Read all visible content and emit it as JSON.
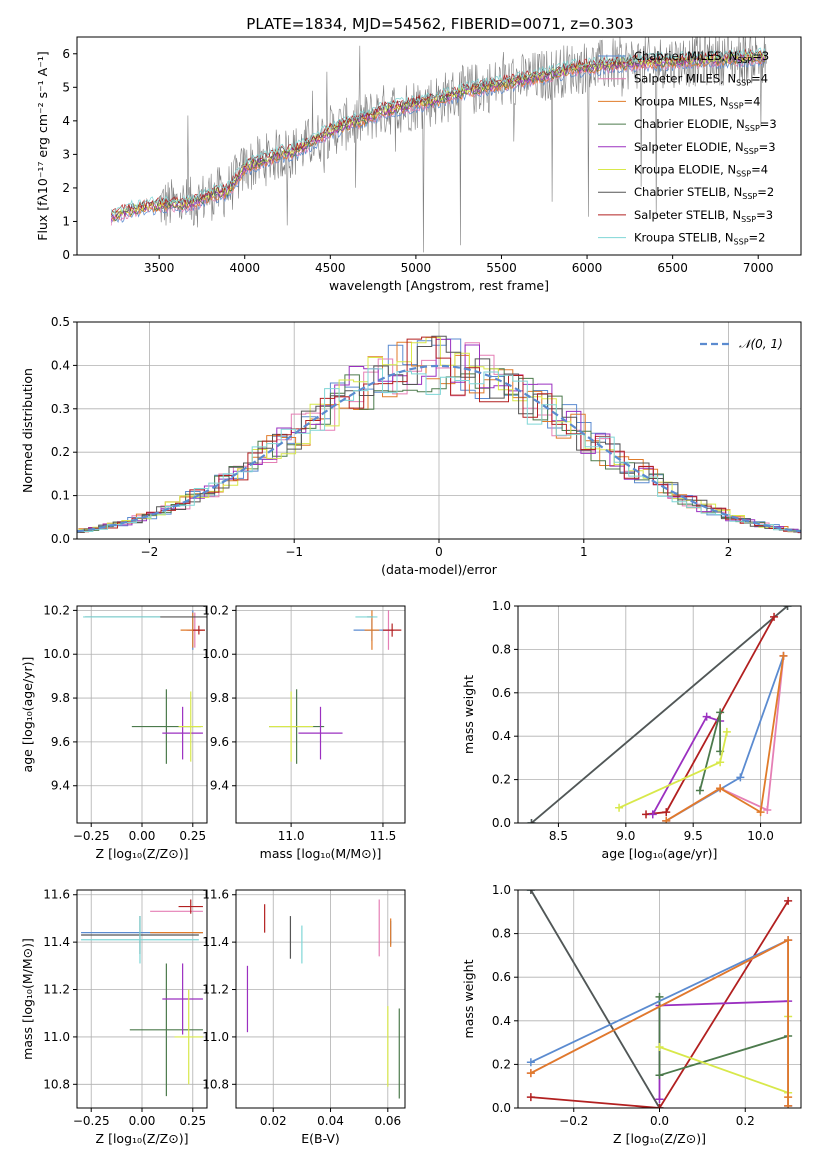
{
  "figure_title": "PLATE=1834, MJD=54562, FIBERID=0071, z=0.303",
  "chart_data": [
    {
      "id": "spectrum",
      "type": "line",
      "title": "PLATE=1834, MJD=54562, FIBERID=0071, z=0.303",
      "xlabel": "wavelength [Angstrom, rest frame]",
      "ylabel": "Flux [fλ10⁻¹⁷ erg cm⁻² s⁻¹ A⁻¹]",
      "xlim": [
        3020,
        7250
      ],
      "ylim": [
        0,
        6.5
      ],
      "xticks": [
        3500,
        4000,
        4500,
        5000,
        5500,
        6000,
        6500,
        7000
      ],
      "yticks": [
        0,
        1,
        2,
        3,
        4,
        5,
        6
      ],
      "legend_position": "right",
      "legend": [
        {
          "label": "Chabrier MILES, N",
          "sub": "SSP",
          "tail": "=3",
          "color": "#5b8bd0"
        },
        {
          "label": "Salpeter MILES, N",
          "sub": "SSP",
          "tail": "=4",
          "color": "#e57fb5"
        },
        {
          "label": "Kroupa MILES, N",
          "sub": "SSP",
          "tail": "=4",
          "color": "#e07b2a"
        },
        {
          "label": "Chabrier ELODIE, N",
          "sub": "SSP",
          "tail": "=3",
          "color": "#4c7a4c"
        },
        {
          "label": "Salpeter ELODIE, N",
          "sub": "SSP",
          "tail": "=3",
          "color": "#9b30c0"
        },
        {
          "label": "Kroupa ELODIE, N",
          "sub": "SSP",
          "tail": "=4",
          "color": "#d8e84a"
        },
        {
          "label": "Chabrier STELIB, N",
          "sub": "SSP",
          "tail": "=2",
          "color": "#555555"
        },
        {
          "label": "Salpeter STELIB, N",
          "sub": "SSP",
          "tail": "=3",
          "color": "#b22020"
        },
        {
          "label": "Kroupa STELIB, N",
          "sub": "SSP",
          "tail": "=2",
          "color": "#7fd6d6"
        }
      ],
      "observed_color": "#808080",
      "model_start": 3220,
      "observed_start": 3500,
      "continuum_points": [
        [
          3220,
          1.1
        ],
        [
          3300,
          1.3
        ],
        [
          3400,
          1.4
        ],
        [
          3500,
          1.5
        ],
        [
          3600,
          1.5
        ],
        [
          3700,
          1.55
        ],
        [
          3800,
          1.8
        ],
        [
          3900,
          1.9
        ],
        [
          4000,
          2.6
        ],
        [
          4100,
          2.8
        ],
        [
          4200,
          3.0
        ],
        [
          4300,
          3.1
        ],
        [
          4400,
          3.4
        ],
        [
          4500,
          3.7
        ],
        [
          4600,
          3.9
        ],
        [
          4700,
          4.05
        ],
        [
          4800,
          4.3
        ],
        [
          4900,
          4.4
        ],
        [
          5000,
          4.5
        ],
        [
          5100,
          4.6
        ],
        [
          5200,
          4.75
        ],
        [
          5300,
          4.9
        ],
        [
          5400,
          5.0
        ],
        [
          5500,
          5.1
        ],
        [
          5600,
          5.2
        ],
        [
          5700,
          5.3
        ],
        [
          5800,
          5.4
        ],
        [
          5900,
          5.55
        ],
        [
          6000,
          5.6
        ],
        [
          6200,
          5.7
        ],
        [
          6400,
          5.75
        ],
        [
          6600,
          5.8
        ],
        [
          6800,
          5.85
        ],
        [
          7000,
          5.9
        ],
        [
          7050,
          5.9
        ]
      ]
    },
    {
      "id": "residuals",
      "type": "histogram",
      "xlabel": "(data-model)/error",
      "ylabel": "Normed distribution",
      "xlim": [
        -2.5,
        2.5
      ],
      "ylim": [
        0,
        0.5
      ],
      "xticks": [
        -2,
        -1,
        0,
        1,
        2
      ],
      "yticks": [
        0.0,
        0.1,
        0.2,
        0.3,
        0.4,
        0.5
      ],
      "bin_width": 0.1,
      "reference_curve": {
        "label": "𝒩(0, 1)",
        "color": "#5b8bd0",
        "mean": 0,
        "sigma": 1
      },
      "legend_position": "top-right"
    },
    {
      "id": "age_vs_Z",
      "type": "errorbar",
      "xlabel": "Z [log₁₀(Z/Z⊙)]",
      "ylabel": "age  [log₁₀(age/yr)]",
      "xlim": [
        -0.32,
        0.32
      ],
      "ylim": [
        9.23,
        10.22
      ],
      "xticks": [
        -0.25,
        0.0,
        0.25
      ],
      "yticks": [
        9.4,
        9.6,
        9.8,
        10.0,
        10.2
      ],
      "points": [
        {
          "model": "Chabrier MILES",
          "x": 0.25,
          "xerr": 0.02,
          "y": 10.11,
          "yerr": 0.09
        },
        {
          "model": "Salpeter MILES",
          "x": 0.26,
          "xerr": 0.04,
          "y": 10.11,
          "yerr": 0.08
        },
        {
          "model": "Kroupa MILES",
          "x": 0.25,
          "xerr": 0.06,
          "y": 10.11,
          "yerr": 0.08
        },
        {
          "model": "Chabrier ELODIE",
          "x": 0.12,
          "xerr": 0.17,
          "y": 9.67,
          "yerr": 0.17
        },
        {
          "model": "Salpeter ELODIE",
          "x": 0.2,
          "xerr": 0.1,
          "y": 9.64,
          "yerr": 0.12
        },
        {
          "model": "Kroupa ELODIE",
          "x": 0.24,
          "xerr": 0.06,
          "y": 9.67,
          "yerr": 0.16
        },
        {
          "model": "Chabrier STELIB",
          "x": 0.04,
          "xerr": 0.32,
          "y": 10.17,
          "yerr": 0.0
        },
        {
          "model": "Salpeter STELIB",
          "x": 0.28,
          "xerr": 0.03,
          "y": 10.11,
          "yerr": 0.02
        },
        {
          "model": "Kroupa STELIB",
          "x": -0.1,
          "xerr": 0.19,
          "y": 10.17,
          "yerr": 0.0
        }
      ]
    },
    {
      "id": "age_vs_mass",
      "type": "errorbar",
      "xlabel": "mass [log₁₀(M/M⊙)]",
      "ylabel": "",
      "xlim": [
        10.7,
        11.62
      ],
      "ylim": [
        9.23,
        10.22
      ],
      "xticks": [
        11.0,
        11.5
      ],
      "yticks": [
        9.4,
        9.6,
        9.8,
        10.0,
        10.2
      ],
      "points": [
        {
          "model": "Chabrier MILES",
          "x": 11.44,
          "xerr": 0.1,
          "y": 10.11,
          "yerr": 0.05
        },
        {
          "model": "Salpeter MILES",
          "x": 11.53,
          "xerr": 0.03,
          "y": 10.11,
          "yerr": 0.09
        },
        {
          "model": "Kroupa MILES",
          "x": 11.44,
          "xerr": 0.04,
          "y": 10.11,
          "yerr": 0.09
        },
        {
          "model": "Chabrier ELODIE",
          "x": 11.03,
          "xerr": 0.15,
          "y": 9.67,
          "yerr": 0.17
        },
        {
          "model": "Salpeter ELODIE",
          "x": 11.16,
          "xerr": 0.12,
          "y": 9.64,
          "yerr": 0.12
        },
        {
          "model": "Kroupa ELODIE",
          "x": 11.0,
          "xerr": 0.12,
          "y": 9.67,
          "yerr": 0.16
        },
        {
          "model": "Chabrier STELIB",
          "x": 11.43,
          "xerr": 0.0,
          "y": 10.17,
          "yerr": 0.0
        },
        {
          "model": "Salpeter STELIB",
          "x": 11.55,
          "xerr": 0.05,
          "y": 10.11,
          "yerr": 0.03
        },
        {
          "model": "Kroupa STELIB",
          "x": 11.41,
          "xerr": 0.06,
          "y": 10.17,
          "yerr": 0.0
        }
      ]
    },
    {
      "id": "weight_vs_age",
      "type": "line",
      "xlabel": "age  [log₁₀(age/yr)]",
      "ylabel": "mass weight",
      "xlim": [
        8.2,
        10.3
      ],
      "ylim": [
        0.0,
        1.0
      ],
      "xticks": [
        8.5,
        9.0,
        9.5,
        10.0
      ],
      "yticks": [
        0.0,
        0.2,
        0.4,
        0.6,
        0.8,
        1.0
      ],
      "series": [
        {
          "model": "Kroupa STELIB",
          "x": [
            8.3,
            10.2
          ],
          "y": [
            0.0,
            1.0
          ]
        },
        {
          "model": "Chabrier STELIB",
          "x": [
            8.3,
            10.2
          ],
          "y": [
            0.0,
            1.0
          ]
        },
        {
          "model": "Salpeter STELIB",
          "x": [
            9.15,
            9.3,
            10.1
          ],
          "y": [
            0.04,
            0.05,
            0.95
          ]
        },
        {
          "model": "Salpeter ELODIE",
          "x": [
            9.2,
            9.6,
            9.7
          ],
          "y": [
            0.04,
            0.49,
            0.47
          ]
        },
        {
          "model": "Chabrier ELODIE",
          "x": [
            9.55,
            9.7,
            9.7
          ],
          "y": [
            0.15,
            0.51,
            0.33
          ]
        },
        {
          "model": "Kroupa ELODIE",
          "x": [
            8.95,
            9.7,
            9.75
          ],
          "y": [
            0.07,
            0.28,
            0.42
          ]
        },
        {
          "model": "Chabrier MILES",
          "x": [
            9.3,
            9.85,
            10.17
          ],
          "y": [
            0.01,
            0.21,
            0.77
          ]
        },
        {
          "model": "Salpeter MILES",
          "x": [
            9.3,
            9.7,
            10.05,
            10.17
          ],
          "y": [
            0.01,
            0.16,
            0.06,
            0.77
          ]
        },
        {
          "model": "Kroupa MILES",
          "x": [
            9.3,
            9.7,
            10.0,
            10.17
          ],
          "y": [
            0.01,
            0.16,
            0.05,
            0.77
          ]
        }
      ]
    },
    {
      "id": "mass_vs_Z",
      "type": "errorbar",
      "xlabel": "Z [log₁₀(Z/Z⊙)]",
      "ylabel": "mass [log₁₀(M/M⊙)]",
      "xlim": [
        -0.32,
        0.32
      ],
      "ylim": [
        10.7,
        11.62
      ],
      "xticks": [
        -0.25,
        0.0,
        0.25
      ],
      "yticks": [
        10.8,
        11.0,
        11.2,
        11.4,
        11.6
      ],
      "points": [
        {
          "model": "Chabrier MILES",
          "x": 0.0,
          "xerr": 0.3,
          "y": 11.44,
          "yerr": 0.0
        },
        {
          "model": "Salpeter MILES",
          "x": 0.17,
          "xerr": 0.13,
          "y": 11.53,
          "yerr": 0.0
        },
        {
          "model": "Kroupa MILES",
          "x": 0.17,
          "xerr": 0.13,
          "y": 11.44,
          "yerr": 0.0
        },
        {
          "model": "Chabrier ELODIE",
          "x": 0.12,
          "xerr": 0.18,
          "y": 11.03,
          "yerr": 0.28
        },
        {
          "model": "Salpeter ELODIE",
          "x": 0.2,
          "xerr": 0.1,
          "y": 11.16,
          "yerr": 0.15
        },
        {
          "model": "Kroupa ELODIE",
          "x": 0.23,
          "xerr": 0.07,
          "y": 11.0,
          "yerr": 0.2
        },
        {
          "model": "Chabrier STELIB",
          "x": -0.01,
          "xerr": 0.29,
          "y": 11.43,
          "yerr": 0.08
        },
        {
          "model": "Salpeter STELIB",
          "x": 0.24,
          "xerr": 0.06,
          "y": 11.55,
          "yerr": 0.03
        },
        {
          "model": "Kroupa STELIB",
          "x": -0.01,
          "xerr": 0.29,
          "y": 11.41,
          "yerr": 0.1
        }
      ]
    },
    {
      "id": "mass_vs_EBV",
      "type": "errorbar",
      "xlabel": "E(B-V)",
      "ylabel": "",
      "xlim": [
        0.007,
        0.066
      ],
      "ylim": [
        10.7,
        11.62
      ],
      "xticks": [
        0.02,
        0.04,
        0.06
      ],
      "yticks": [
        10.8,
        11.0,
        11.2,
        11.4,
        11.6
      ],
      "points": [
        {
          "model": "Chabrier MILES",
          "x": 0.061,
          "xerr": 0.0,
          "y": 11.44,
          "yerr": 0.05
        },
        {
          "model": "Salpeter MILES",
          "x": 0.057,
          "xerr": 0.0,
          "y": 11.46,
          "yerr": 0.12
        },
        {
          "model": "Kroupa MILES",
          "x": 0.061,
          "xerr": 0.0,
          "y": 11.44,
          "yerr": 0.06
        },
        {
          "model": "Chabrier ELODIE",
          "x": 0.064,
          "xerr": 0.0,
          "y": 10.93,
          "yerr": 0.19
        },
        {
          "model": "Salpeter ELODIE",
          "x": 0.011,
          "xerr": 0.0,
          "y": 11.16,
          "yerr": 0.14
        },
        {
          "model": "Kroupa ELODIE",
          "x": 0.06,
          "xerr": 0.0,
          "y": 10.96,
          "yerr": 0.17
        },
        {
          "model": "Chabrier STELIB",
          "x": 0.026,
          "xerr": 0.0,
          "y": 11.42,
          "yerr": 0.09
        },
        {
          "model": "Salpeter STELIB",
          "x": 0.017,
          "xerr": 0.0,
          "y": 11.5,
          "yerr": 0.06
        },
        {
          "model": "Kroupa STELIB",
          "x": 0.03,
          "xerr": 0.0,
          "y": 11.39,
          "yerr": 0.08
        }
      ]
    },
    {
      "id": "weight_vs_Z",
      "type": "line",
      "xlabel": "Z [log₁₀(Z/Z⊙)]",
      "ylabel": "mass weight",
      "xlim": [
        -0.33,
        0.33
      ],
      "ylim": [
        0.0,
        1.0
      ],
      "xticks": [
        -0.2,
        0.0,
        0.2
      ],
      "yticks": [
        0.0,
        0.2,
        0.4,
        0.6,
        0.8,
        1.0
      ],
      "series": [
        {
          "model": "Kroupa STELIB",
          "x": [
            -0.3,
            0.0
          ],
          "y": [
            1.0,
            0.0
          ]
        },
        {
          "model": "Chabrier STELIB",
          "x": [
            -0.3,
            0.0
          ],
          "y": [
            1.0,
            0.0
          ]
        },
        {
          "model": "Salpeter STELIB",
          "x": [
            -0.3,
            0.0,
            0.3
          ],
          "y": [
            0.05,
            0.0,
            0.95
          ]
        },
        {
          "model": "Salpeter ELODIE",
          "x": [
            0.0,
            0.0,
            0.3
          ],
          "y": [
            0.04,
            0.47,
            0.49
          ]
        },
        {
          "model": "Chabrier ELODIE",
          "x": [
            0.0,
            0.0,
            0.3
          ],
          "y": [
            0.51,
            0.15,
            0.33
          ]
        },
        {
          "model": "Kroupa ELODIE",
          "x": [
            0.0,
            0.3,
            0.3
          ],
          "y": [
            0.28,
            0.07,
            0.42
          ]
        },
        {
          "model": "Chabrier MILES",
          "x": [
            -0.3,
            0.3,
            0.3
          ],
          "y": [
            0.21,
            0.77,
            0.01
          ]
        },
        {
          "model": "Salpeter MILES",
          "x": [
            -0.3,
            0.3,
            0.3
          ],
          "y": [
            0.16,
            0.77,
            0.01
          ]
        },
        {
          "model": "Kroupa MILES",
          "x": [
            -0.3,
            0.3,
            0.3,
            0.3
          ],
          "y": [
            0.16,
            0.77,
            0.05,
            0.01
          ]
        }
      ]
    }
  ]
}
